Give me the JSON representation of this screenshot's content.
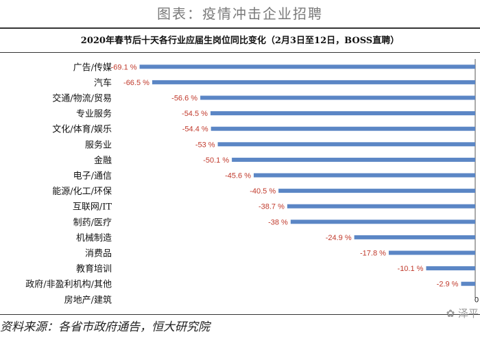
{
  "header": {
    "title": "图表：疫情冲击企业招聘"
  },
  "chart_data": {
    "type": "bar",
    "orientation": "horizontal",
    "title": "2020年春节后十天各行业应届生岗位同比变化（2月3日至12日，BOSS直聘）",
    "categories": [
      "广告/传媒",
      "汽车",
      "交通/物流/贸易",
      "专业服务",
      "文化/体育/娱乐",
      "服务业",
      "金融",
      "电子/通信",
      "能源/化工/环保",
      "互联网/IT",
      "制药/医疗",
      "机械制造",
      "消费品",
      "教育培训",
      "政府/非盈利机构/其他",
      "房地产/建筑"
    ],
    "values": [
      -69.1,
      -66.5,
      -56.6,
      -54.5,
      -54.4,
      -53,
      -50.1,
      -45.6,
      -40.5,
      -38.7,
      -38,
      -24.9,
      -17.8,
      -10.1,
      -2.9,
      0
    ],
    "value_labels": [
      "-69.1 %",
      "-66.5 %",
      "-56.6 %",
      "-54.5 %",
      "-54.4 %",
      "-53 %",
      "-50.1 %",
      "-45.6 %",
      "-40.5 %",
      "-38.7 %",
      "-38 %",
      "-24.9 %",
      "-17.8 %",
      "-10.1 %",
      "-2.9 %",
      "0"
    ],
    "xlim": [
      -72,
      0
    ],
    "grid": false,
    "legend": "none",
    "bar_color": "#5b86c5",
    "label_color": "#c0392b"
  },
  "footer": {
    "source": "资料来源：各省市政府通告，恒大研究院"
  },
  "watermark": {
    "text": "泽平"
  }
}
